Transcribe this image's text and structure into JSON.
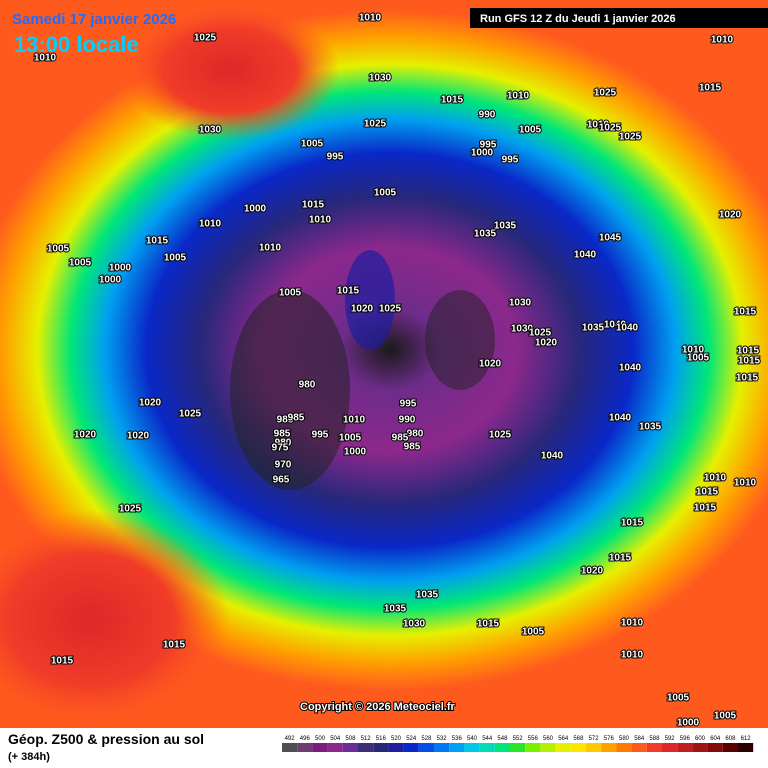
{
  "header": {
    "date": "Samedi 17 janvier 2026",
    "time": "13:00 locale",
    "run": "Run GFS 12 Z du Jeudi 1 janvier 2026"
  },
  "footer": {
    "title": "Géop. Z500 & pression au sol",
    "lead": "(+ 384h)",
    "copyright": "Copyright © 2026 Meteociel.fr"
  },
  "scale": [
    {
      "value": 492,
      "color": "#505050"
    },
    {
      "value": 496,
      "color": "#6e3c6e"
    },
    {
      "value": 500,
      "color": "#7a1e7a"
    },
    {
      "value": 504,
      "color": "#8c288c"
    },
    {
      "value": 508,
      "color": "#6e2c9a"
    },
    {
      "value": 512,
      "color": "#3c2c7a"
    },
    {
      "value": 516,
      "color": "#28287a"
    },
    {
      "value": 520,
      "color": "#1e1ea0"
    },
    {
      "value": 524,
      "color": "#0a28c8"
    },
    {
      "value": 528,
      "color": "#0050e6"
    },
    {
      "value": 532,
      "color": "#0078f0"
    },
    {
      "value": 536,
      "color": "#00a0f0"
    },
    {
      "value": 540,
      "color": "#00c8e6"
    },
    {
      "value": 544,
      "color": "#00dcb4"
    },
    {
      "value": 548,
      "color": "#00e678"
    },
    {
      "value": 552,
      "color": "#28e628"
    },
    {
      "value": 556,
      "color": "#78f000"
    },
    {
      "value": 560,
      "color": "#b4f000"
    },
    {
      "value": 564,
      "color": "#e6f000"
    },
    {
      "value": 568,
      "color": "#ffe600"
    },
    {
      "value": 572,
      "color": "#ffc800"
    },
    {
      "value": 576,
      "color": "#ffa000"
    },
    {
      "value": 580,
      "color": "#ff7800"
    },
    {
      "value": 584,
      "color": "#ff5a1e"
    },
    {
      "value": 588,
      "color": "#f03c28"
    },
    {
      "value": 592,
      "color": "#dc2828"
    },
    {
      "value": 596,
      "color": "#be1e1e"
    },
    {
      "value": 600,
      "color": "#a01414"
    },
    {
      "value": 604,
      "color": "#820a0a"
    },
    {
      "value": 608,
      "color": "#5a0000"
    },
    {
      "value": 612,
      "color": "#280000"
    }
  ],
  "isobar_labels": [
    1010,
    1025,
    1010,
    1030,
    1015,
    1010,
    1025,
    1010,
    1015,
    1030,
    1025,
    990,
    1005,
    1010,
    1025,
    1025,
    995,
    1000,
    995,
    1005,
    995,
    1005,
    1000,
    1015,
    1010,
    1010,
    1015,
    1005,
    1005,
    1000,
    1000,
    1005,
    1010,
    1035,
    1035,
    1045,
    1040,
    1020,
    1005,
    1015,
    1020,
    1025,
    1030,
    1030,
    1025,
    1020,
    1035,
    1040,
    1040,
    1015,
    1010,
    1005,
    1015,
    1015,
    1015,
    1040,
    1020,
    980,
    985,
    985,
    1010,
    995,
    990,
    1020,
    1025,
    985,
    980,
    975,
    995,
    1005,
    1000,
    980,
    985,
    985,
    1025,
    1040,
    1035,
    1040,
    1020,
    1020,
    970,
    965,
    1010,
    1010,
    1015,
    1015,
    1025,
    1015,
    1015,
    1020,
    1035,
    1035,
    1030,
    1015,
    1005,
    1010,
    1010,
    1015,
    1015,
    1005,
    1005,
    1000
  ]
}
